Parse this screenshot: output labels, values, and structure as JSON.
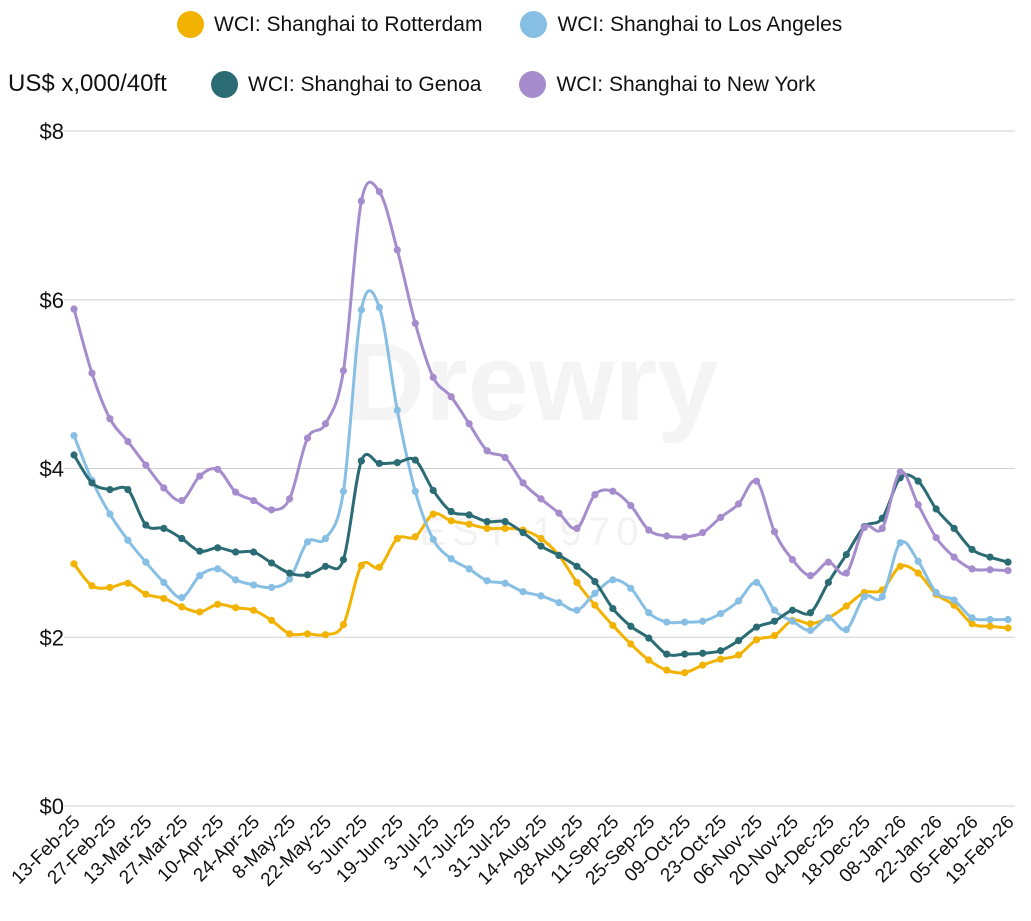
{
  "chart_data": {
    "type": "line",
    "ylabel": "US$ x,000/40ft",
    "ylim": [
      0,
      8
    ],
    "yticks": [
      "$0",
      "$2",
      "$4",
      "$6",
      "$8"
    ],
    "grid": "horizontal",
    "legend_position": "top",
    "watermark": "Drewry EST 1970",
    "x_tick_labels": [
      "13-Feb-25",
      "27-Feb-25",
      "13-Mar-25",
      "27-Mar-25",
      "10-Apr-25",
      "24-Apr-25",
      "8-May-25",
      "22-May-25",
      "5-Jun-25",
      "19-Jun-25",
      "3-Jul-25",
      "17-Jul-25",
      "31-Jul-25",
      "14-Aug-25",
      "28-Aug-25",
      "11-Sep-25",
      "25-Sep-25",
      "09-Oct-25",
      "23-Oct-25",
      "06-Nov-25",
      "20-Nov-25",
      "04-Dec-25",
      "18-Dec-25",
      "08-Jan-26",
      "22-Jan-26",
      "05-Feb-26",
      "19-Feb-26"
    ],
    "series": [
      {
        "name": "WCI: Shanghai to Rotterdam",
        "color": "#f2b200",
        "values": [
          2.87,
          2.61,
          2.59,
          2.64,
          2.51,
          2.46,
          2.36,
          2.3,
          2.39,
          2.35,
          2.32,
          2.2,
          2.04,
          2.04,
          2.03,
          2.15,
          2.85,
          2.83,
          3.17,
          3.19,
          3.46,
          3.38,
          3.34,
          3.29,
          3.29,
          3.27,
          3.17,
          2.97,
          2.65,
          2.38,
          2.14,
          1.92,
          1.73,
          1.61,
          1.58,
          1.67,
          1.74,
          1.79,
          1.97,
          2.02,
          2.2,
          2.16,
          2.23,
          2.37,
          2.53,
          2.56,
          2.84,
          2.76,
          2.51,
          2.38,
          2.16,
          2.13,
          2.11
        ]
      },
      {
        "name": "WCI: Shanghai to Los Angeles",
        "color": "#86bfe3",
        "values": [
          4.39,
          3.86,
          3.46,
          3.15,
          2.89,
          2.65,
          2.47,
          2.73,
          2.81,
          2.68,
          2.62,
          2.59,
          2.69,
          3.13,
          3.17,
          3.73,
          5.88,
          5.91,
          4.69,
          3.73,
          3.16,
          2.93,
          2.81,
          2.67,
          2.64,
          2.54,
          2.49,
          2.41,
          2.32,
          2.52,
          2.68,
          2.58,
          2.29,
          2.18,
          2.18,
          2.19,
          2.28,
          2.43,
          2.65,
          2.32,
          2.19,
          2.08,
          2.23,
          2.09,
          2.48,
          2.48,
          3.12,
          2.9,
          2.53,
          2.44,
          2.23,
          2.21,
          2.21
        ]
      },
      {
        "name": "WCI: Shanghai to Genoa",
        "color": "#2b6b73",
        "values": [
          4.16,
          3.83,
          3.75,
          3.75,
          3.33,
          3.29,
          3.17,
          3.02,
          3.06,
          3.01,
          3.01,
          2.88,
          2.76,
          2.74,
          2.84,
          2.92,
          4.09,
          4.06,
          4.07,
          4.1,
          3.74,
          3.49,
          3.45,
          3.37,
          3.37,
          3.24,
          3.08,
          2.97,
          2.84,
          2.66,
          2.34,
          2.13,
          1.99,
          1.8,
          1.8,
          1.81,
          1.84,
          1.96,
          2.12,
          2.19,
          2.32,
          2.29,
          2.65,
          2.98,
          3.31,
          3.41,
          3.89,
          3.85,
          3.52,
          3.29,
          3.04,
          2.95,
          2.89
        ]
      },
      {
        "name": "WCI: Shanghai to New York",
        "color": "#a58ccd",
        "values": [
          5.89,
          5.13,
          4.59,
          4.32,
          4.04,
          3.77,
          3.62,
          3.91,
          3.99,
          3.72,
          3.62,
          3.51,
          3.64,
          4.36,
          4.53,
          5.16,
          7.17,
          7.28,
          6.59,
          5.72,
          5.08,
          4.85,
          4.53,
          4.21,
          4.13,
          3.83,
          3.64,
          3.47,
          3.29,
          3.69,
          3.73,
          3.56,
          3.27,
          3.2,
          3.19,
          3.24,
          3.42,
          3.58,
          3.85,
          3.25,
          2.92,
          2.73,
          2.89,
          2.76,
          3.3,
          3.29,
          3.96,
          3.57,
          3.18,
          2.95,
          2.81,
          2.8,
          2.79
        ]
      }
    ]
  }
}
